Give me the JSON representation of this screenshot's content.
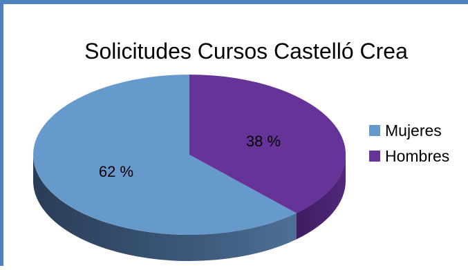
{
  "chart_data": {
    "type": "pie",
    "title": "Solicitudes Cursos Castelló Crea",
    "categories": [
      "Mujeres",
      "Hombres"
    ],
    "values": [
      62,
      38
    ],
    "data_labels": [
      "62 %",
      "38 %"
    ],
    "legend_position": "right",
    "colors": [
      "#6699cc",
      "#663399"
    ],
    "three_d": true
  }
}
